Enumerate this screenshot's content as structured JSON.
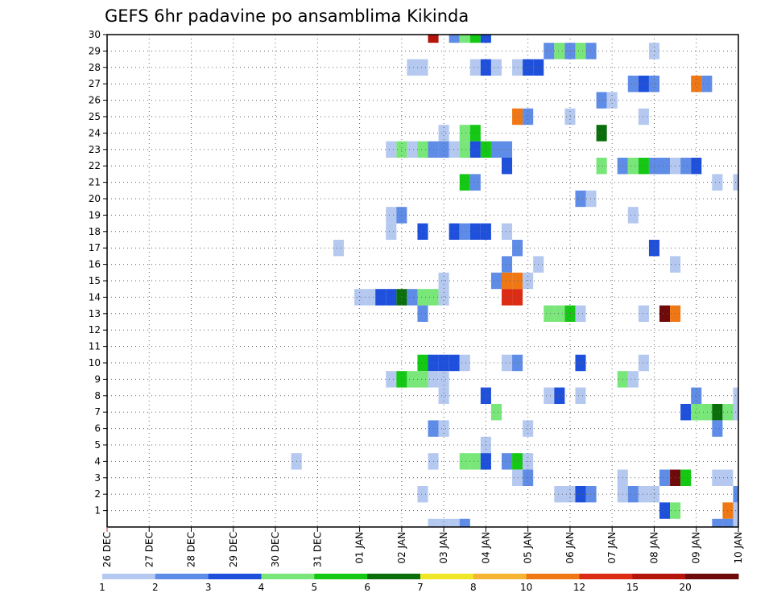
{
  "chart_data": {
    "type": "heatmap",
    "title": "GEFS 6hr padavine po ansamblima Kikinda",
    "xlabel": "",
    "ylabel": "",
    "x_ticks": [
      "26 DEC",
      "27 DEC",
      "28 DEC",
      "29 DEC",
      "30 DEC",
      "31 DEC",
      "01 JAN",
      "02 JAN",
      "03 JAN",
      "04 JAN",
      "05 JAN",
      "06 JAN",
      "07 JAN",
      "08 JAN",
      "09 JAN",
      "10 JAN"
    ],
    "x_unit": "6-hour step since 26 DEC 00Z",
    "xlim": [
      0,
      60
    ],
    "y_ticks": [
      "1",
      "2",
      "3",
      "4",
      "5",
      "6",
      "7",
      "8",
      "9",
      "10",
      "11",
      "12",
      "13",
      "14",
      "15",
      "16",
      "17",
      "18",
      "19",
      "20",
      "21",
      "22",
      "23",
      "24",
      "25",
      "26",
      "27",
      "28",
      "29",
      "30"
    ],
    "ylim": [
      0,
      30
    ],
    "grid": true,
    "legend_position": "bottom",
    "levels": [
      "1",
      "2",
      "3",
      "4",
      "5",
      "6",
      "7",
      "8",
      "10",
      "12",
      "15",
      "20"
    ],
    "level_colors": [
      "#b4c8f0",
      "#5f8ce6",
      "#1e50dc",
      "#78e678",
      "#14c814",
      "#0a6e0a",
      "#f0e628",
      "#f5b432",
      "#f07814",
      "#dc2d14",
      "#b4140a",
      "#6e0a0a"
    ],
    "cells": [
      [
        31,
        30,
        11
      ],
      [
        33,
        30,
        2
      ],
      [
        34,
        30,
        4
      ],
      [
        35,
        30,
        5
      ],
      [
        36,
        30,
        3
      ],
      [
        42,
        29,
        2
      ],
      [
        43,
        29,
        4
      ],
      [
        44,
        29,
        2
      ],
      [
        45,
        29,
        4
      ],
      [
        46,
        29,
        2
      ],
      [
        52,
        29,
        1
      ],
      [
        29,
        28,
        1
      ],
      [
        30,
        28,
        1
      ],
      [
        35,
        28,
        1
      ],
      [
        36,
        28,
        3
      ],
      [
        37,
        28,
        1
      ],
      [
        39,
        28,
        1
      ],
      [
        40,
        28,
        3
      ],
      [
        41,
        28,
        3
      ],
      [
        50,
        27,
        2
      ],
      [
        51,
        27,
        3
      ],
      [
        52,
        27,
        2
      ],
      [
        56,
        27,
        9
      ],
      [
        57,
        27,
        2
      ],
      [
        47,
        26,
        2
      ],
      [
        48,
        26,
        1
      ],
      [
        39,
        25,
        9
      ],
      [
        40,
        25,
        2
      ],
      [
        44,
        25,
        1
      ],
      [
        51,
        25,
        1
      ],
      [
        32,
        24,
        1
      ],
      [
        34,
        24,
        4
      ],
      [
        35,
        24,
        5
      ],
      [
        47,
        24,
        6
      ],
      [
        27,
        23,
        1
      ],
      [
        28,
        23,
        4
      ],
      [
        29,
        23,
        1
      ],
      [
        30,
        23,
        4
      ],
      [
        31,
        23,
        2
      ],
      [
        32,
        23,
        2
      ],
      [
        33,
        23,
        1
      ],
      [
        34,
        23,
        4
      ],
      [
        35,
        23,
        3
      ],
      [
        36,
        23,
        5
      ],
      [
        37,
        23,
        2
      ],
      [
        38,
        23,
        2
      ],
      [
        38,
        22,
        3
      ],
      [
        47,
        22,
        4
      ],
      [
        49,
        22,
        2
      ],
      [
        50,
        22,
        4
      ],
      [
        51,
        22,
        5
      ],
      [
        52,
        22,
        2
      ],
      [
        53,
        22,
        2
      ],
      [
        54,
        22,
        1
      ],
      [
        55,
        22,
        2
      ],
      [
        56,
        22,
        3
      ],
      [
        34,
        21,
        5
      ],
      [
        35,
        21,
        2
      ],
      [
        58,
        21,
        1
      ],
      [
        60,
        21,
        1
      ],
      [
        45,
        20,
        2
      ],
      [
        46,
        20,
        1
      ],
      [
        27,
        19,
        1
      ],
      [
        28,
        19,
        2
      ],
      [
        50,
        19,
        1
      ],
      [
        27,
        18,
        1
      ],
      [
        30,
        18,
        3
      ],
      [
        33,
        18,
        3
      ],
      [
        34,
        18,
        2
      ],
      [
        35,
        18,
        3
      ],
      [
        36,
        18,
        3
      ],
      [
        38,
        18,
        1
      ],
      [
        22,
        17,
        1
      ],
      [
        39,
        17,
        2
      ],
      [
        52,
        17,
        3
      ],
      [
        38,
        16,
        2
      ],
      [
        41,
        16,
        1
      ],
      [
        54,
        16,
        1
      ],
      [
        32,
        15,
        1
      ],
      [
        37,
        15,
        2
      ],
      [
        38,
        15,
        9
      ],
      [
        39,
        15,
        9
      ],
      [
        40,
        15,
        1
      ],
      [
        24,
        14,
        1
      ],
      [
        25,
        14,
        1
      ],
      [
        26,
        14,
        3
      ],
      [
        27,
        14,
        3
      ],
      [
        28,
        14,
        6
      ],
      [
        29,
        14,
        2
      ],
      [
        30,
        14,
        4
      ],
      [
        31,
        14,
        4
      ],
      [
        32,
        14,
        1
      ],
      [
        38,
        14,
        10
      ],
      [
        39,
        14,
        10
      ],
      [
        30,
        13,
        2
      ],
      [
        42,
        13,
        4
      ],
      [
        43,
        13,
        4
      ],
      [
        44,
        13,
        5
      ],
      [
        45,
        13,
        1
      ],
      [
        51,
        13,
        1
      ],
      [
        53,
        13,
        12
      ],
      [
        54,
        13,
        9
      ],
      [
        30,
        10,
        5
      ],
      [
        31,
        10,
        3
      ],
      [
        32,
        10,
        3
      ],
      [
        33,
        10,
        3
      ],
      [
        34,
        10,
        1
      ],
      [
        38,
        10,
        1
      ],
      [
        39,
        10,
        2
      ],
      [
        45,
        10,
        3
      ],
      [
        51,
        10,
        1
      ],
      [
        27,
        9,
        1
      ],
      [
        28,
        9,
        5
      ],
      [
        29,
        9,
        4
      ],
      [
        30,
        9,
        4
      ],
      [
        31,
        9,
        1
      ],
      [
        32,
        9,
        1
      ],
      [
        49,
        9,
        4
      ],
      [
        50,
        9,
        1
      ],
      [
        32,
        8,
        1
      ],
      [
        36,
        8,
        3
      ],
      [
        42,
        8,
        1
      ],
      [
        43,
        8,
        3
      ],
      [
        45,
        8,
        1
      ],
      [
        56,
        8,
        2
      ],
      [
        60,
        8,
        1
      ],
      [
        37,
        7,
        4
      ],
      [
        55,
        7,
        3
      ],
      [
        56,
        7,
        4
      ],
      [
        57,
        7,
        4
      ],
      [
        58,
        7,
        6
      ],
      [
        59,
        7,
        4
      ],
      [
        60,
        7,
        1
      ],
      [
        31,
        6,
        2
      ],
      [
        32,
        6,
        1
      ],
      [
        40,
        6,
        1
      ],
      [
        58,
        6,
        2
      ],
      [
        36,
        5,
        1
      ],
      [
        18,
        4,
        1
      ],
      [
        31,
        4,
        1
      ],
      [
        34,
        4,
        4
      ],
      [
        35,
        4,
        4
      ],
      [
        36,
        4,
        3
      ],
      [
        38,
        4,
        2
      ],
      [
        39,
        4,
        5
      ],
      [
        40,
        4,
        1
      ],
      [
        39,
        3,
        1
      ],
      [
        40,
        3,
        2
      ],
      [
        49,
        3,
        1
      ],
      [
        53,
        3,
        2
      ],
      [
        54,
        3,
        12
      ],
      [
        55,
        3,
        5
      ],
      [
        58,
        3,
        1
      ],
      [
        59,
        3,
        1
      ],
      [
        30,
        2,
        1
      ],
      [
        43,
        2,
        1
      ],
      [
        44,
        2,
        1
      ],
      [
        45,
        2,
        3
      ],
      [
        46,
        2,
        2
      ],
      [
        49,
        2,
        1
      ],
      [
        50,
        2,
        2
      ],
      [
        51,
        2,
        1
      ],
      [
        52,
        2,
        1
      ],
      [
        60,
        2,
        2
      ],
      [
        53,
        1,
        3
      ],
      [
        54,
        1,
        4
      ],
      [
        59,
        1,
        9
      ],
      [
        60,
        1,
        1
      ],
      [
        31,
        0,
        1
      ],
      [
        32,
        0,
        1
      ],
      [
        33,
        0,
        1
      ],
      [
        34,
        0,
        2
      ],
      [
        58,
        0,
        2
      ],
      [
        59,
        0,
        2
      ],
      [
        60,
        0,
        1
      ]
    ]
  }
}
